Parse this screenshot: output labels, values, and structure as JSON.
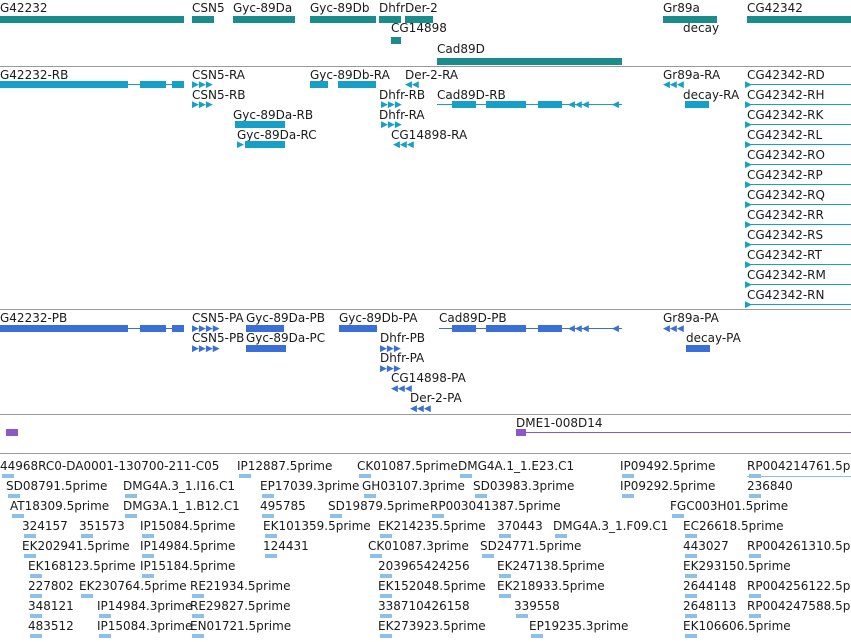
{
  "colors": {
    "gene": "#1a8c8c",
    "transcript": "#16a0c8",
    "protein": "#3a6fd8",
    "clone": "#8a58c8",
    "est": "#8ec0e6",
    "separator": "#9a9a9a"
  },
  "tracks": {
    "genes": [
      {
        "label": "G42232"
      },
      {
        "label": "CSN5"
      },
      {
        "label": "Gyc-89Da"
      },
      {
        "label": "Gyc-89Db"
      },
      {
        "label": "Dhfr"
      },
      {
        "label": "Der-2"
      },
      {
        "label": "CG14898"
      },
      {
        "label": "Cad89D"
      },
      {
        "label": "Gr89a"
      },
      {
        "label": "decay"
      },
      {
        "label": "CG42342"
      }
    ],
    "transcripts": [
      {
        "label": "G42232-RB"
      },
      {
        "label": "CSN5-RA"
      },
      {
        "label": "CSN5-RB"
      },
      {
        "label": "Gyc-89Db-RA"
      },
      {
        "label": "Der-2-RA"
      },
      {
        "label": "Dhfr-RB"
      },
      {
        "label": "Cad89D-RB"
      },
      {
        "label": "Dhfr-RA"
      },
      {
        "label": "Gyc-89Da-RB"
      },
      {
        "label": "Gyc-89Da-RC"
      },
      {
        "label": "CG14898-RA"
      },
      {
        "label": "Gr89a-RA"
      },
      {
        "label": "decay-RA"
      },
      {
        "label": "CG42342-RD"
      },
      {
        "label": "CG42342-RH"
      },
      {
        "label": "CG42342-RK"
      },
      {
        "label": "CG42342-RL"
      },
      {
        "label": "CG42342-RO"
      },
      {
        "label": "CG42342-RP"
      },
      {
        "label": "CG42342-RQ"
      },
      {
        "label": "CG42342-RR"
      },
      {
        "label": "CG42342-RS"
      },
      {
        "label": "CG42342-RT"
      },
      {
        "label": "CG42342-RM"
      },
      {
        "label": "CG42342-RN"
      }
    ],
    "proteins": [
      {
        "label": "G42232-PB"
      },
      {
        "label": "CSN5-PA"
      },
      {
        "label": "Gyc-89Da-PB"
      },
      {
        "label": "Gyc-89Db-PA"
      },
      {
        "label": "Cad89D-PB"
      },
      {
        "label": "Gr89a-PA"
      },
      {
        "label": "CSN5-PB"
      },
      {
        "label": "Gyc-89Da-PC"
      },
      {
        "label": "Dhfr-PB"
      },
      {
        "label": "decay-PA"
      },
      {
        "label": "Dhfr-PA"
      },
      {
        "label": "CG14898-PA"
      },
      {
        "label": "Der-2-PA"
      }
    ],
    "clones": [
      {
        "label": "DME1-008D14"
      }
    ],
    "ests": [
      "44968RC0-DA0001-130700-211-C05",
      "IP12887.5prime",
      "CK01087.5prime",
      "DMG4A.1_1.E23.C1",
      "IP09492.5prime",
      "RP004214761.5p",
      "SD08791.5prime",
      "DMG4A.3_1.I16.C1",
      "EP17039.3prime",
      "GH03107.3prime",
      "SD03983.3prime",
      "IP09292.5prime",
      "236840",
      "AT18309.5prime",
      "DMG3A.1_1.B12.C1",
      "495785",
      "SD19879.5prime",
      "RP003041387.5prime",
      "FGC003H01.5prime",
      "324157",
      "351573",
      "IP15084.5prime",
      "EK101359.5prime",
      "EK214235.5prime",
      "370443",
      "DMG4A.3_1.F09.C1",
      "EC26618.5prime",
      "EK202941.5prime",
      "IP14984.5prime",
      "124431",
      "CK01087.3prime",
      "SD24771.5prime",
      "443027",
      "RP004261310.5p",
      "EK168123.5prime",
      "IP15184.5prime",
      "203965424256",
      "EK247138.5prime",
      "EK293150.5prime",
      "227802",
      "EK230764.5prime",
      "RE21934.5prime",
      "EK152048.5prime",
      "EK218933.5prime",
      "2644148",
      "RP004256122.5p",
      "348121",
      "IP14984.3prime",
      "RE29827.5prime",
      "338710426158",
      "339558",
      "2648113",
      "RP004247588.5p",
      "483512",
      "IP15084.3prime",
      "EN01721.5prime",
      "EK273923.5prime",
      "EP19235.3prime",
      "EK106606.5prime"
    ]
  }
}
